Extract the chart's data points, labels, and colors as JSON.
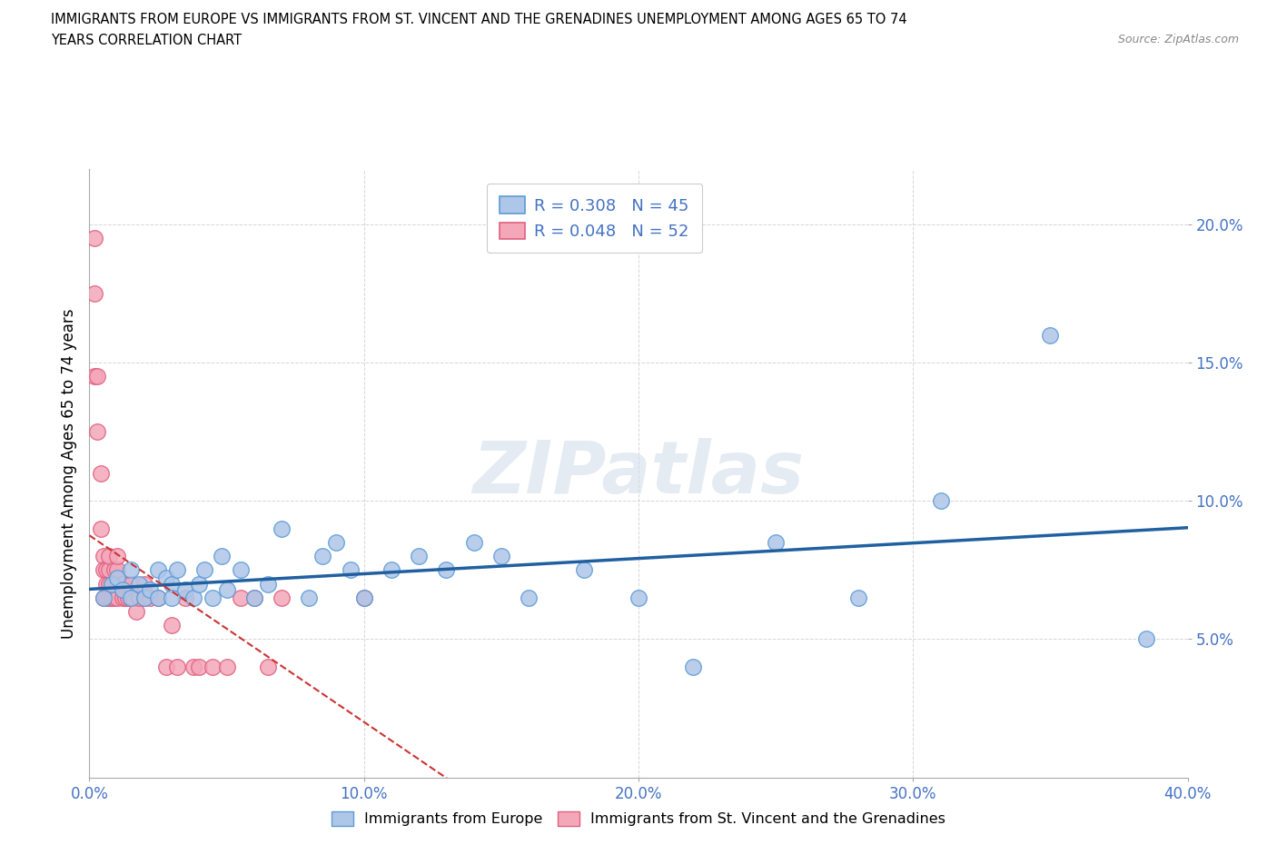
{
  "title_line1": "IMMIGRANTS FROM EUROPE VS IMMIGRANTS FROM ST. VINCENT AND THE GRENADINES UNEMPLOYMENT AMONG AGES 65 TO 74",
  "title_line2": "YEARS CORRELATION CHART",
  "source": "Source: ZipAtlas.com",
  "ylabel": "Unemployment Among Ages 65 to 74 years",
  "xlim": [
    0.0,
    0.4
  ],
  "ylim": [
    0.0,
    0.22
  ],
  "xticks": [
    0.0,
    0.1,
    0.2,
    0.3,
    0.4
  ],
  "yticks": [
    0.05,
    0.1,
    0.15,
    0.2
  ],
  "xticklabels": [
    "0.0%",
    "10.0%",
    "20.0%",
    "30.0%",
    "40.0%"
  ],
  "yticklabels": [
    "5.0%",
    "10.0%",
    "15.0%",
    "20.0%"
  ],
  "europe_color": "#aec6e8",
  "europe_edge_color": "#5b9bd5",
  "svg_color": "#f4a7b9",
  "svg_edge_color": "#e06080",
  "trendline_europe_color": "#2160a0",
  "trendline_svg_color": "#cc3333",
  "legend_europe_R": "R = 0.308",
  "legend_europe_N": "N = 45",
  "legend_svg_R": "R = 0.048",
  "legend_svg_N": "N = 52",
  "watermark": "ZIPatlas",
  "europe_x": [
    0.005,
    0.008,
    0.01,
    0.012,
    0.015,
    0.015,
    0.018,
    0.02,
    0.022,
    0.025,
    0.025,
    0.028,
    0.03,
    0.03,
    0.032,
    0.035,
    0.038,
    0.04,
    0.042,
    0.045,
    0.048,
    0.05,
    0.055,
    0.06,
    0.065,
    0.07,
    0.08,
    0.085,
    0.09,
    0.095,
    0.1,
    0.11,
    0.12,
    0.13,
    0.14,
    0.15,
    0.16,
    0.18,
    0.2,
    0.22,
    0.25,
    0.28,
    0.31,
    0.35,
    0.385
  ],
  "europe_y": [
    0.065,
    0.07,
    0.072,
    0.068,
    0.065,
    0.075,
    0.07,
    0.065,
    0.068,
    0.075,
    0.065,
    0.072,
    0.07,
    0.065,
    0.075,
    0.068,
    0.065,
    0.07,
    0.075,
    0.065,
    0.08,
    0.068,
    0.075,
    0.065,
    0.07,
    0.09,
    0.065,
    0.08,
    0.085,
    0.075,
    0.065,
    0.075,
    0.08,
    0.075,
    0.085,
    0.08,
    0.065,
    0.075,
    0.065,
    0.04,
    0.085,
    0.065,
    0.1,
    0.16,
    0.05
  ],
  "svg_x": [
    0.002,
    0.002,
    0.002,
    0.003,
    0.003,
    0.004,
    0.004,
    0.005,
    0.005,
    0.005,
    0.006,
    0.006,
    0.006,
    0.007,
    0.007,
    0.007,
    0.007,
    0.008,
    0.008,
    0.009,
    0.009,
    0.009,
    0.01,
    0.01,
    0.01,
    0.01,
    0.012,
    0.012,
    0.013,
    0.014,
    0.015,
    0.015,
    0.016,
    0.017,
    0.018,
    0.02,
    0.02,
    0.022,
    0.025,
    0.028,
    0.03,
    0.032,
    0.035,
    0.038,
    0.04,
    0.045,
    0.05,
    0.055,
    0.06,
    0.065,
    0.07,
    0.1
  ],
  "svg_y": [
    0.195,
    0.175,
    0.145,
    0.145,
    0.125,
    0.11,
    0.09,
    0.08,
    0.075,
    0.065,
    0.065,
    0.07,
    0.075,
    0.065,
    0.07,
    0.075,
    0.08,
    0.065,
    0.07,
    0.065,
    0.07,
    0.075,
    0.065,
    0.07,
    0.075,
    0.08,
    0.065,
    0.07,
    0.065,
    0.065,
    0.065,
    0.07,
    0.065,
    0.06,
    0.065,
    0.065,
    0.07,
    0.065,
    0.065,
    0.04,
    0.055,
    0.04,
    0.065,
    0.04,
    0.04,
    0.04,
    0.04,
    0.065,
    0.065,
    0.04,
    0.065,
    0.065
  ]
}
